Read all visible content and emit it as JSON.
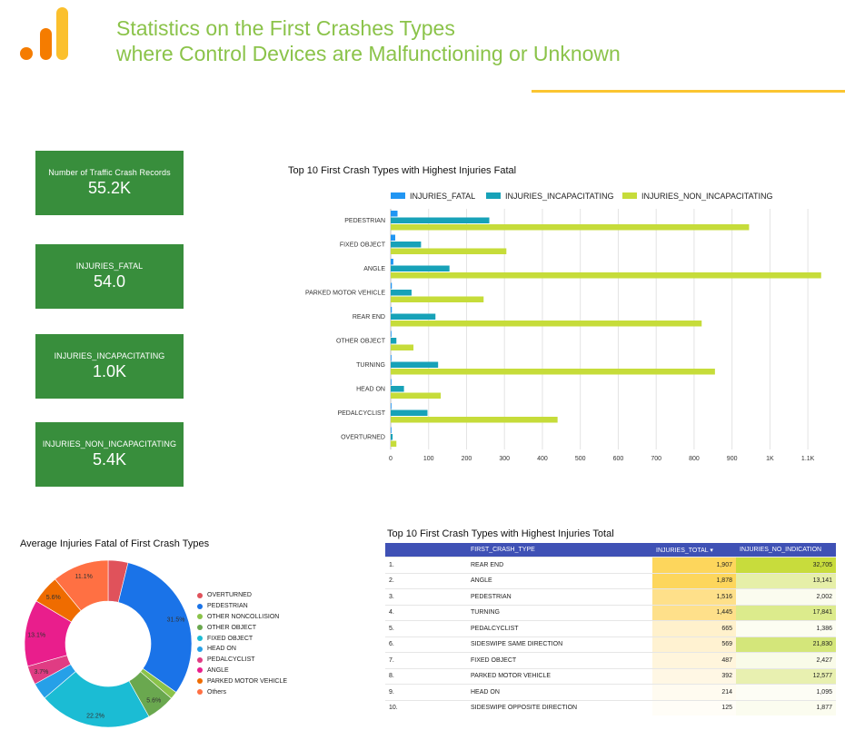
{
  "header": {
    "title_line1": "Statistics on the First Crashes Types",
    "title_line2": "where Control Devices are Malfunctioning or Unknown",
    "logo_color_orange": "#f57c00",
    "logo_color_amber": "#fbc02d"
  },
  "kpis": [
    {
      "label": "Number of Traffic Crash Records",
      "value": "55.2K"
    },
    {
      "label": "INJURIES_FATAL",
      "value": "54.0"
    },
    {
      "label": "INJURIES_INCAPACITATING",
      "value": "1.0K"
    },
    {
      "label": "INJURIES_NON_INCAPACITATING",
      "value": "5.4K"
    }
  ],
  "chart_data": [
    {
      "type": "bar",
      "orientation": "horizontal",
      "title": "Top 10 First Crash Types with Highest Injuries Fatal",
      "categories": [
        "PEDESTRIAN",
        "FIXED OBJECT",
        "ANGLE",
        "PARKED MOTOR VEHICLE",
        "REAR END",
        "OTHER OBJECT",
        "TURNING",
        "HEAD ON",
        "PEDALCYCLIST",
        "OVERTURNED"
      ],
      "series": [
        {
          "name": "INJURIES_FATAL",
          "color": "#2196f3",
          "values": [
            18,
            12,
            7,
            3,
            3,
            2,
            2,
            2,
            2,
            2
          ]
        },
        {
          "name": "INJURIES_INCAPACITATING",
          "color": "#17a2b8",
          "values": [
            260,
            80,
            155,
            55,
            118,
            15,
            125,
            35,
            97,
            5
          ]
        },
        {
          "name": "INJURIES_NON_INCAPACITATING",
          "color": "#c6dc3a",
          "values": [
            945,
            305,
            1135,
            245,
            820,
            60,
            855,
            132,
            440,
            15
          ]
        }
      ],
      "xticks": [
        "0",
        "100",
        "200",
        "300",
        "400",
        "500",
        "600",
        "700",
        "800",
        "900",
        "1K",
        "1.1K"
      ],
      "xlim": [
        0,
        1150
      ]
    },
    {
      "type": "pie",
      "donut": true,
      "title": "Average Injuries Fatal of First Crash Types",
      "labels": [
        "OVERTURNED",
        "PEDESTRIAN",
        "OTHER NONCOLLISION",
        "OTHER OBJECT",
        "FIXED OBJECT",
        "HEAD ON",
        "PEDALCYCLIST",
        "ANGLE",
        "PARKED MOTOR VEHICLE",
        "Others"
      ],
      "values": [
        3.9,
        31.5,
        1.5,
        5.6,
        22.2,
        3.3,
        3.7,
        13.1,
        5.6,
        11.1
      ],
      "colors": [
        "#e0525b",
        "#1a73e8",
        "#8bc34a",
        "#6aa84f",
        "#1bbcd4",
        "#26a0e8",
        "#e03c83",
        "#e91e8c",
        "#ef6c00",
        "#ff7043"
      ],
      "slice_labels": [
        "",
        "31.5%",
        "",
        "5.6%",
        "22.2%",
        "",
        "3.7%",
        "13.1%",
        "5.6%",
        "11.1%"
      ]
    }
  ],
  "table": {
    "title": "Top 10 First Crash Types with Highest Injuries Total",
    "headers": [
      "FIRST_CRASH_TYPE",
      "INJURIES_TOTAL ▾",
      "INJURIES_NO_INDICATION"
    ],
    "rows": [
      {
        "idx": "1.",
        "type": "REAR END",
        "total": "1,907",
        "no_ind": "32,705",
        "t_bg": "#fdd65c",
        "n_bg": "#c8dc3c"
      },
      {
        "idx": "2.",
        "type": "ANGLE",
        "total": "1,878",
        "no_ind": "13,141",
        "t_bg": "#fdd65c",
        "n_bg": "#e6efa8"
      },
      {
        "idx": "3.",
        "type": "PEDESTRIAN",
        "total": "1,516",
        "no_ind": "2,002",
        "t_bg": "#fee08a",
        "n_bg": "#fbfcef"
      },
      {
        "idx": "4.",
        "type": "TURNING",
        "total": "1,445",
        "no_ind": "17,841",
        "t_bg": "#fee08a",
        "n_bg": "#dceb8c"
      },
      {
        "idx": "5.",
        "type": "PEDALCYCLIST",
        "total": "665",
        "no_ind": "1,386",
        "t_bg": "#fff1cc",
        "n_bg": "#fcfdf2"
      },
      {
        "idx": "6.",
        "type": "SIDESWIPE SAME DIRECTION",
        "total": "569",
        "no_ind": "21,830",
        "t_bg": "#fff2d1",
        "n_bg": "#d4e67a"
      },
      {
        "idx": "7.",
        "type": "FIXED OBJECT",
        "total": "487",
        "no_ind": "2,427",
        "t_bg": "#fff5dc",
        "n_bg": "#f9fbe8"
      },
      {
        "idx": "8.",
        "type": "PARKED MOTOR VEHICLE",
        "total": "392",
        "no_ind": "12,577",
        "t_bg": "#fff7e4",
        "n_bg": "#e8f0b0"
      },
      {
        "idx": "9.",
        "type": "HEAD ON",
        "total": "214",
        "no_ind": "1,095",
        "t_bg": "#fffbf0",
        "n_bg": "#fdfdf5"
      },
      {
        "idx": "10.",
        "type": "SIDESWIPE OPPOSITE DIRECTION",
        "total": "125",
        "no_ind": "1,877",
        "t_bg": "#fffdf7",
        "n_bg": "#fbfcef"
      }
    ]
  }
}
